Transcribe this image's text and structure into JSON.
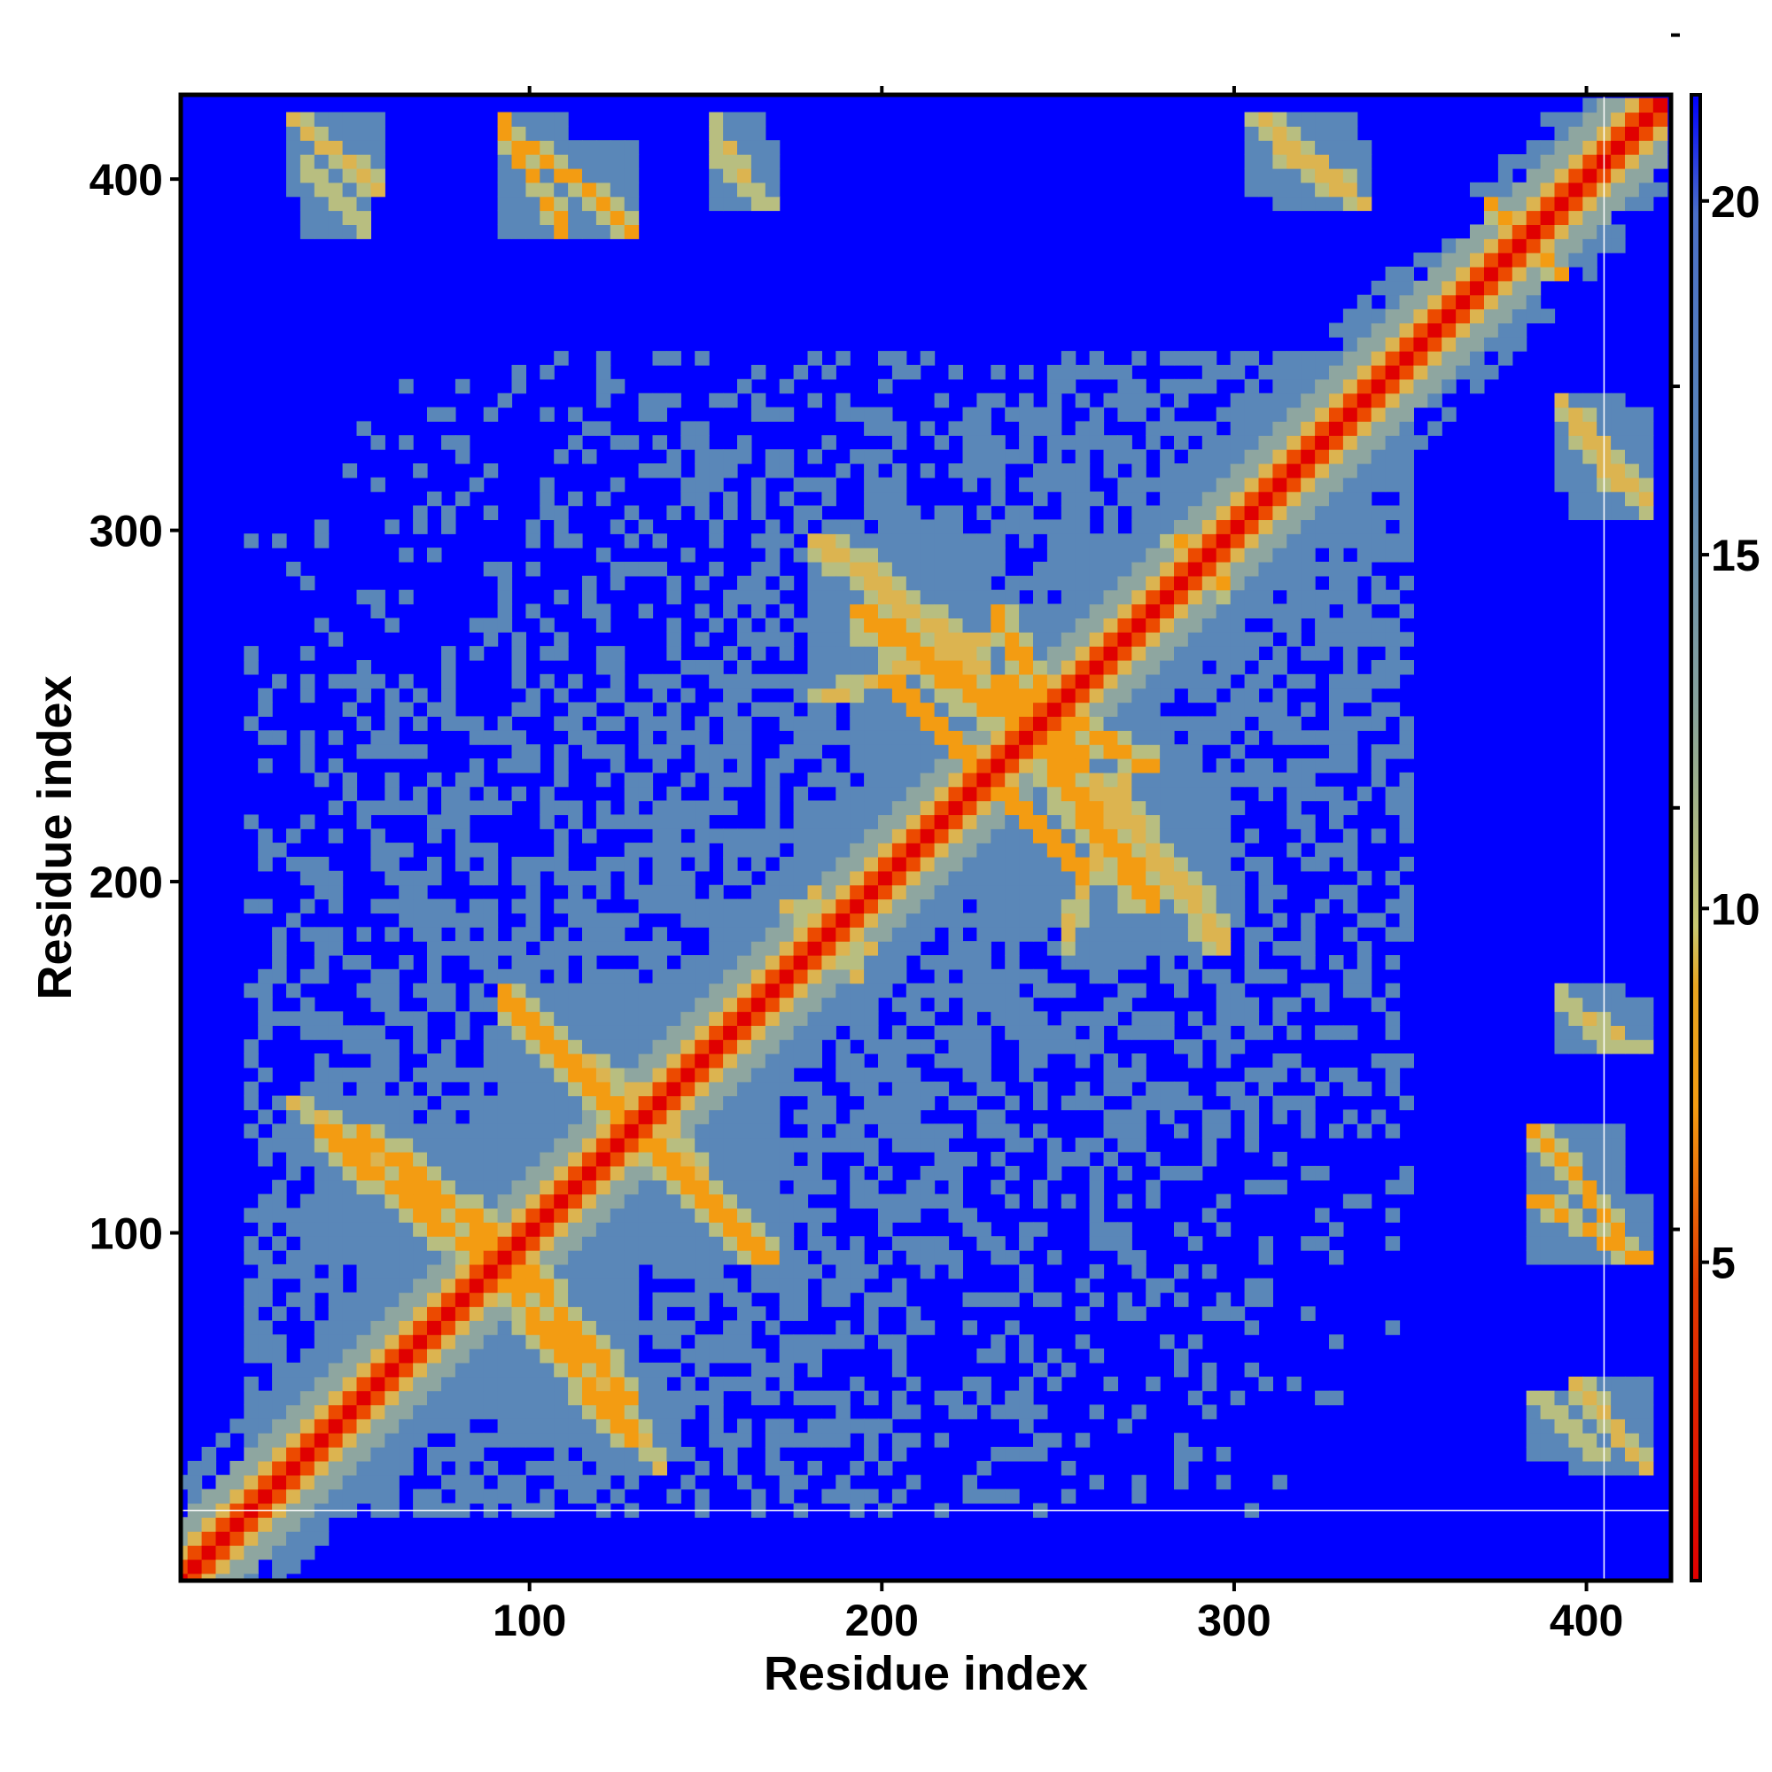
{
  "chart_data": {
    "type": "heatmap",
    "title": "",
    "xlabel": "Residue index",
    "ylabel": "Residue index",
    "xlim": [
      1,
      424
    ],
    "ylim": [
      1,
      424
    ],
    "x_ticks": [
      100,
      200,
      300,
      400
    ],
    "y_ticks": [
      100,
      200,
      300,
      400
    ],
    "x_tick_labels": [
      "100",
      "200",
      "300",
      "400"
    ],
    "y_tick_labels": [
      "100",
      "200",
      "300",
      "400"
    ],
    "colorbar": {
      "range": [
        0.5,
        21.5
      ],
      "ticks": [
        5,
        10,
        15,
        20
      ],
      "tick_labels": [
        "5",
        "10",
        "15",
        "20"
      ],
      "colors": {
        "near": "#e00000",
        "mid": "#f39c12",
        "yellowish": "#c8c870",
        "far_contact": "#5a87b8",
        "background": "#0000ff"
      }
    },
    "matrix_symmetric": true,
    "diagonal_value": 1,
    "background_value": 21,
    "contact_regions": [
      {
        "x": [
          90,
          130
        ],
        "y": [
          50,
          100
        ],
        "orientation": "anti",
        "peak": 6
      },
      {
        "x": [
          40,
          90
        ],
        "y": [
          90,
          130
        ],
        "orientation": "anti",
        "peak": 6
      },
      {
        "x": [
          120,
          170
        ],
        "y": [
          90,
          140
        ],
        "orientation": "anti",
        "peak": 6
      },
      {
        "x": [
          100,
          130
        ],
        "y": [
          140,
          160
        ],
        "orientation": "anti",
        "peak": 7
      },
      {
        "x": [
          120,
          140
        ],
        "y": [
          30,
          60
        ],
        "orientation": "anti",
        "peak": 8
      },
      {
        "x": [
          180,
          195
        ],
        "y": [
          170,
          200
        ],
        "orientation": "anti",
        "peak": 8
      },
      {
        "x": [
          190,
          260
        ],
        "y": [
          230,
          280
        ],
        "orientation": "anti",
        "peak": 6
      },
      {
        "x": [
          230,
          260
        ],
        "y": [
          200,
          230
        ],
        "orientation": "anti",
        "peak": 6
      },
      {
        "x": [
          260,
          300
        ],
        "y": [
          180,
          230
        ],
        "orientation": "anti",
        "peak": 7
      },
      {
        "x": [
          180,
          230
        ],
        "y": [
          250,
          270
        ],
        "orientation": "para",
        "peak": 7
      },
      {
        "x": [
          230,
          260
        ],
        "y": [
          230,
          280
        ],
        "orientation": "anti",
        "peak": 6
      },
      {
        "x": [
          310,
          340
        ],
        "y": [
          390,
          410
        ],
        "orientation": "anti",
        "peak": 7
      },
      {
        "x": [
          100,
          130
        ],
        "y": [
          385,
          410
        ],
        "orientation": "anti",
        "peak": 6
      },
      {
        "x": [
          150,
          170
        ],
        "y": [
          390,
          410
        ],
        "orientation": "anti",
        "peak": 7
      },
      {
        "x": [
          35,
          55
        ],
        "y": [
          385,
          405
        ],
        "orientation": "anti",
        "peak": 8
      },
      {
        "x": [
          385,
          420
        ],
        "y": [
          90,
          110
        ],
        "orientation": "anti",
        "peak": 6
      },
      {
        "x": [
          395,
          420
        ],
        "y": [
          150,
          165
        ],
        "orientation": "anti",
        "peak": 7
      },
      {
        "x": [
          395,
          420
        ],
        "y": [
          30,
          60
        ],
        "orientation": "anti",
        "peak": 8
      },
      {
        "x": [
          395,
          420
        ],
        "y": [
          305,
          335
        ],
        "orientation": "anti",
        "peak": 8
      },
      {
        "x": [
          280,
          300
        ],
        "y": [
          285,
          300
        ],
        "orientation": "anti",
        "peak": 6
      },
      {
        "x": [
          370,
          390
        ],
        "y": [
          375,
          395
        ],
        "orientation": "anti",
        "peak": 6
      }
    ]
  }
}
